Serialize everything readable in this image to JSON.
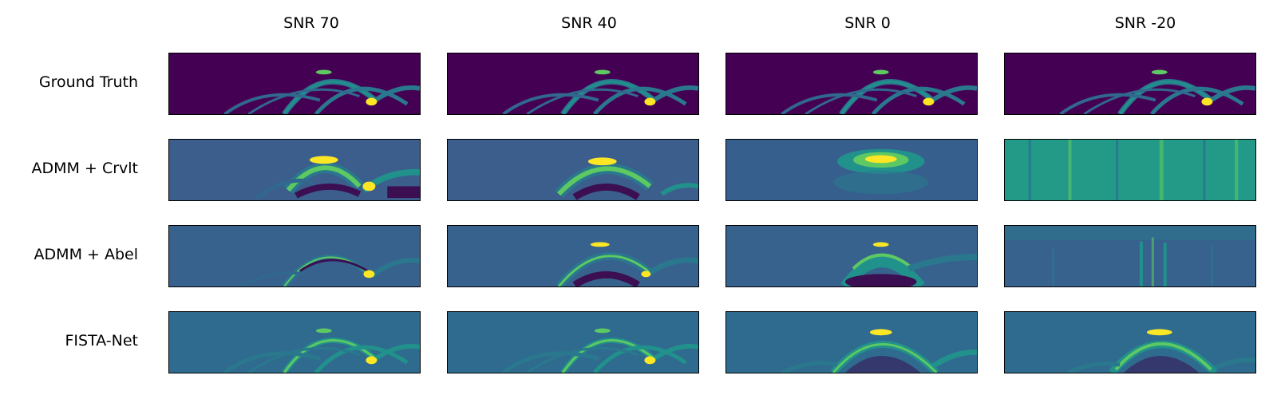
{
  "columns": [
    "SNR 70",
    "SNR 40",
    "SNR 0",
    "SNR -20"
  ],
  "rows": [
    "Ground Truth",
    "ADMM + Crvlt",
    "ADMM + Abel",
    "FISTA-Net"
  ],
  "colors": {
    "ground_truth_bg": "#440154",
    "crvlt_bg": "#3b5e8c",
    "abel_bg": "#37628d",
    "fista_bg": "#2f6b8e",
    "dark_teal": "#2a788e",
    "teal": "#21918c",
    "green": "#5ec962",
    "yellow": "#fde725",
    "dark_purple": "#3b0f52"
  }
}
